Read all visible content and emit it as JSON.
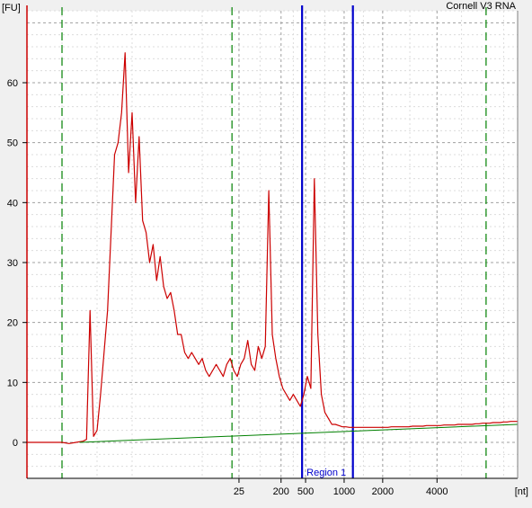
{
  "chart_data": {
    "type": "line",
    "title": "Cornell V3 RNA",
    "ylabel": "[FU]",
    "xlabel": "[nt]",
    "ylim": [
      -6,
      72
    ],
    "y_ticks": [
      0,
      10,
      20,
      30,
      40,
      50,
      60
    ],
    "x_ticks": [
      {
        "label": "25",
        "t": 60.5
      },
      {
        "label": "200",
        "t": 72.5
      },
      {
        "label": "500",
        "t": 79.5
      },
      {
        "label": "1000",
        "t": 90.5
      },
      {
        "label": "2000",
        "t": 101.5
      },
      {
        "label": "4000",
        "t": 117
      }
    ],
    "xlim": [
      0,
      140
    ],
    "grid": true,
    "region": {
      "label": "Region 1",
      "start": 78.5,
      "end": 93
    },
    "marker_lines": [
      10,
      58.5,
      131
    ],
    "series": [
      {
        "name": "",
        "color": "#cc0000",
        "x": [
          0,
          5,
          8,
          10,
          12,
          14,
          15,
          16,
          17,
          18,
          19,
          20,
          21,
          22,
          23,
          24,
          25,
          26,
          27,
          28,
          29,
          30,
          31,
          32,
          33,
          34,
          35,
          36,
          37,
          38,
          39,
          40,
          41,
          42,
          43,
          44,
          45,
          46,
          47,
          48,
          49,
          50,
          51,
          52,
          53,
          54,
          55,
          56,
          57,
          58,
          59,
          60,
          61,
          62,
          63,
          64,
          65,
          66,
          67,
          68,
          69,
          70,
          71,
          72,
          73,
          74,
          75,
          76,
          77,
          78,
          79,
          80,
          81,
          82,
          83,
          84,
          85,
          86,
          87,
          88,
          89,
          90,
          91,
          92,
          93,
          94,
          95,
          96,
          97,
          98,
          99,
          100,
          101,
          102,
          103,
          104,
          105,
          106,
          107,
          108,
          109,
          110,
          111,
          112,
          113,
          114,
          115,
          116,
          117,
          118,
          119,
          120,
          121,
          122,
          123,
          124,
          125,
          126,
          127,
          128,
          129,
          130,
          131,
          132,
          133,
          134,
          135,
          136,
          137,
          138,
          139,
          140
        ],
        "y": [
          0,
          0,
          0,
          0,
          -0.2,
          0,
          0.1,
          0.2,
          0.5,
          22,
          1,
          2,
          8,
          15,
          22,
          35,
          48,
          50,
          55,
          65,
          45,
          55,
          40,
          51,
          37,
          35,
          30,
          33,
          27,
          31,
          26,
          24,
          25,
          22,
          18,
          18,
          15,
          14,
          15,
          14,
          13,
          14,
          12,
          11,
          12,
          13,
          12,
          11,
          13,
          14,
          12,
          11,
          13,
          14,
          17,
          13,
          12,
          16,
          14,
          16,
          42,
          18,
          14,
          11,
          9,
          8,
          7,
          8,
          7,
          6,
          8,
          11,
          9,
          44,
          18,
          8,
          5,
          4,
          3,
          3,
          2.8,
          2.6,
          2.6,
          2.5,
          2.5,
          2.5,
          2.5,
          2.5,
          2.5,
          2.5,
          2.5,
          2.5,
          2.5,
          2.5,
          2.5,
          2.6,
          2.6,
          2.6,
          2.6,
          2.6,
          2.6,
          2.7,
          2.7,
          2.7,
          2.7,
          2.8,
          2.8,
          2.8,
          2.8,
          2.8,
          2.9,
          2.9,
          2.9,
          2.9,
          3,
          3,
          3,
          3,
          3,
          3.1,
          3.1,
          3.2,
          3.2,
          3.2,
          3.3,
          3.3,
          3.3,
          3.4,
          3.4,
          3.5,
          3.5,
          3.5
        ]
      },
      {
        "name": "",
        "color": "#008000",
        "x": [
          15,
          140
        ],
        "y": [
          0,
          3
        ]
      }
    ]
  }
}
